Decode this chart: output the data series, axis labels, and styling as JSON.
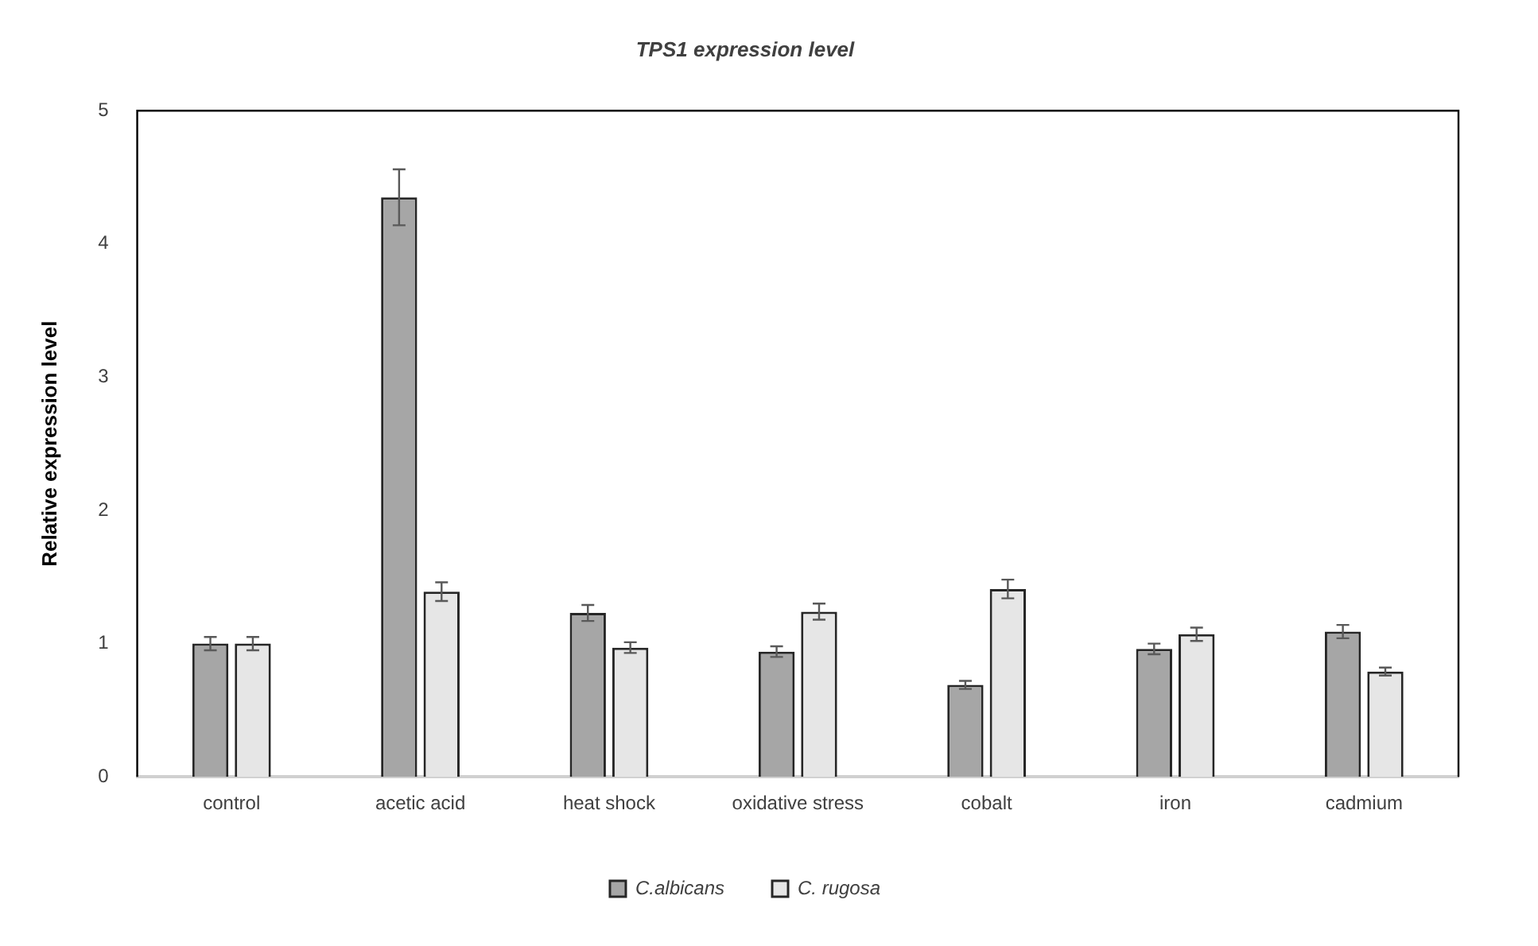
{
  "chart_data": {
    "type": "bar",
    "title": "TPS1 expression level",
    "ylabel": "Relative expression level",
    "categories": [
      "control",
      "acetic acid",
      "heat shock",
      "oxidative stress",
      "cobalt",
      "iron",
      "cadmium"
    ],
    "series": [
      {
        "name": "C.albicans",
        "color": "#a6a6a6",
        "values": [
          1.0,
          4.35,
          1.23,
          0.94,
          0.69,
          0.96,
          1.09
        ],
        "errors": [
          0.05,
          0.21,
          0.06,
          0.04,
          0.03,
          0.04,
          0.05
        ]
      },
      {
        "name": "C. rugosa",
        "color": "#e6e6e6",
        "values": [
          1.0,
          1.39,
          0.97,
          1.24,
          1.41,
          1.07,
          0.79
        ],
        "errors": [
          0.05,
          0.07,
          0.04,
          0.06,
          0.07,
          0.05,
          0.03
        ]
      }
    ],
    "ylim": [
      0,
      5
    ],
    "yticks": [
      0,
      1,
      2,
      3,
      4,
      5
    ],
    "grid": false,
    "legend": "bottom"
  }
}
